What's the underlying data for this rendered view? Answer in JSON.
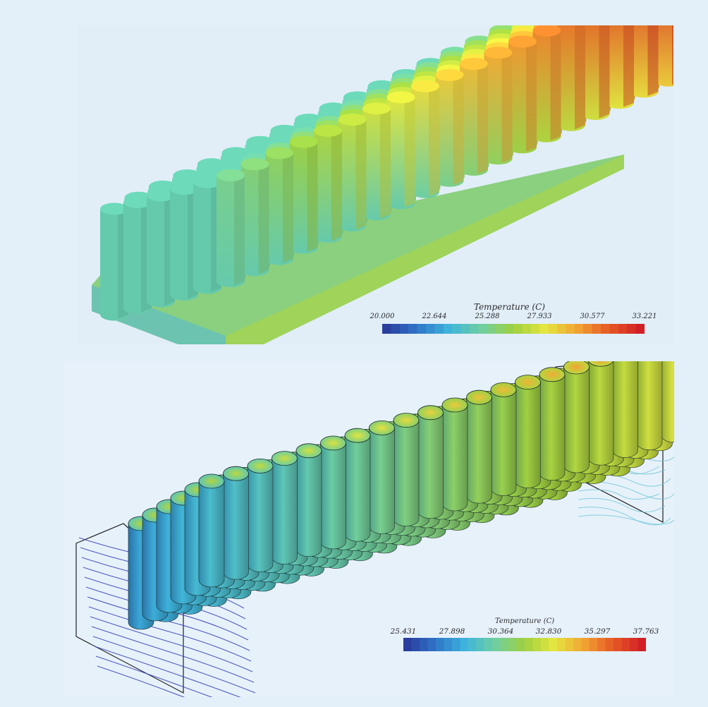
{
  "figures": [
    {
      "legend": {
        "title": "Temperature (C)",
        "ticks": [
          "20.000",
          "22.644",
          "25.288",
          "27.933",
          "30.577",
          "33.221"
        ],
        "colorscale": [
          "#2a3e9e",
          "#2f77c9",
          "#3fb6dd",
          "#6fcfa0",
          "#9fd040",
          "#e5e640",
          "#f2a533",
          "#e65a26",
          "#d21f26"
        ]
      }
    },
    {
      "legend": {
        "title": "Temperature (C)",
        "ticks": [
          "25.431",
          "27.898",
          "30.364",
          "32.830",
          "35.297",
          "37.763"
        ],
        "colorscale": [
          "#2a3e9e",
          "#2f77c9",
          "#3fb6dd",
          "#6fcfa0",
          "#9fd040",
          "#e5e640",
          "#f2a533",
          "#e65a26",
          "#d21f26"
        ]
      }
    }
  ]
}
